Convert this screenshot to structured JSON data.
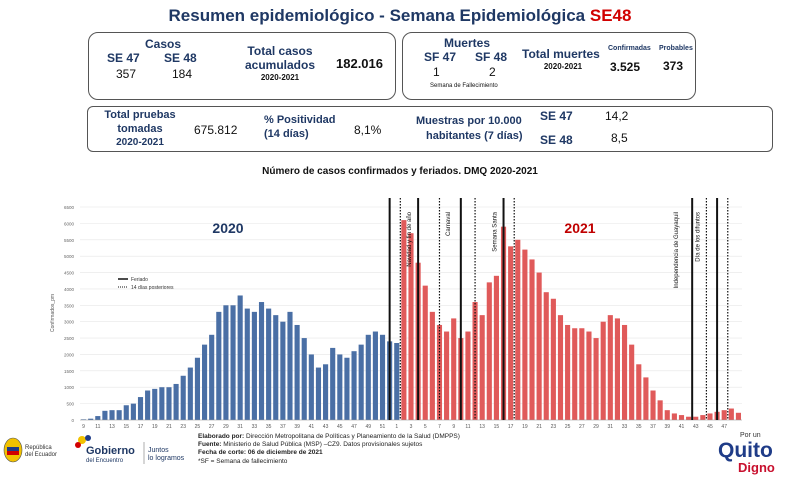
{
  "header": {
    "title_main": "Resumen epidemiológico - Semana Epidemiológica ",
    "title_se": "SE48"
  },
  "casos": {
    "label": "Casos",
    "se47_label": "SE 47",
    "se48_label": "SE 48",
    "se47_value": "357",
    "se48_value": "184",
    "total_label_1": "Total casos",
    "total_label_2": "acumulados",
    "total_period": "2020-2021",
    "total_value": "182.016"
  },
  "muertes": {
    "label": "Muertes",
    "sf47_label": "SF 47",
    "sf48_label": "SF 48",
    "sf47_value": "1",
    "sf48_value": "2",
    "note": "Semana de Fallecimiento",
    "total_label": "Total muertes",
    "total_period": "2020-2021",
    "confirmadas_label": "Confirmadas",
    "confirmadas_value": "3.525",
    "probables_label": "Probables",
    "probables_value": "373"
  },
  "pruebas": {
    "label_1": "Total pruebas",
    "label_2": "tomadas",
    "period": "2020-2021",
    "value": "675.812",
    "positividad_label_1": "% Positividad",
    "positividad_label_2": "(14 días)",
    "positividad_value": "8,1%",
    "muestras_label_1": "Muestras por 10.000",
    "muestras_label_2": "habitantes (7 días)",
    "se47_label": "SE 47",
    "se47_value": "14,2",
    "se48_label": "SE 48",
    "se48_value": "8,5"
  },
  "chart_data": {
    "type": "bar",
    "title": "Número de casos confirmados y feriados. DMQ 2020-2021",
    "ylabel": "Confirmados_pm",
    "ylim": [
      0,
      6500
    ],
    "yticks": [
      0,
      500,
      1000,
      1500,
      2000,
      2500,
      3000,
      3500,
      4000,
      4500,
      5000,
      5500,
      6000,
      6500
    ],
    "year_2020_label": "2020",
    "year_2021_label": "2021",
    "legend": {
      "feriado": "Feriado",
      "posteriores": "14 días posteriores"
    },
    "colors": {
      "2020": "#4a6fa5",
      "2021": "#e05a5a"
    },
    "series": [
      {
        "name": "2020",
        "x": [
          9,
          10,
          11,
          12,
          13,
          14,
          15,
          16,
          17,
          18,
          19,
          20,
          21,
          22,
          23,
          24,
          25,
          26,
          27,
          28,
          29,
          30,
          31,
          32,
          33,
          34,
          35,
          36,
          37,
          38,
          39,
          40,
          41,
          42,
          43,
          44,
          45,
          46,
          47,
          48,
          49,
          50,
          51,
          52,
          53
        ],
        "values": [
          20,
          40,
          120,
          280,
          300,
          300,
          450,
          500,
          700,
          900,
          950,
          1000,
          1000,
          1100,
          1350,
          1600,
          1900,
          2300,
          2600,
          3300,
          3500,
          3500,
          3800,
          3400,
          3300,
          3600,
          3400,
          3200,
          3000,
          3300,
          2900,
          2500,
          2000,
          1600,
          1700,
          2200,
          2000,
          1900,
          2100,
          2300,
          2600,
          2700,
          2600,
          2400,
          2350
        ]
      },
      {
        "name": "2021",
        "x": [
          1,
          2,
          3,
          4,
          5,
          6,
          7,
          8,
          9,
          10,
          11,
          12,
          13,
          14,
          15,
          16,
          17,
          18,
          19,
          20,
          21,
          22,
          23,
          24,
          25,
          26,
          27,
          28,
          29,
          30,
          31,
          32,
          33,
          34,
          35,
          36,
          37,
          38,
          39,
          40,
          41,
          42,
          43,
          44,
          45,
          46,
          47,
          48
        ],
        "values": [
          6100,
          5700,
          4800,
          4100,
          3300,
          2900,
          2700,
          3100,
          2500,
          2700,
          3600,
          3200,
          4200,
          4400,
          5900,
          5300,
          5500,
          5200,
          4900,
          4500,
          3900,
          3700,
          3200,
          2900,
          2800,
          2800,
          2700,
          2500,
          3000,
          3200,
          3100,
          2900,
          2300,
          1700,
          1300,
          900,
          600,
          300,
          200,
          150,
          100,
          100,
          150,
          200,
          250,
          300,
          350,
          220
        ]
      }
    ],
    "xtick_labels": [
      "9",
      "11",
      "13",
      "15",
      "17",
      "19",
      "21",
      "23",
      "25",
      "27",
      "29",
      "31",
      "33",
      "35",
      "37",
      "39",
      "41",
      "43",
      "45",
      "47",
      "49",
      "51",
      "1",
      "3",
      "5",
      "7",
      "9",
      "11",
      "13",
      "15",
      "17",
      "19",
      "21",
      "23",
      "25",
      "27",
      "29",
      "31",
      "33",
      "35",
      "37",
      "39",
      "41",
      "43",
      "45",
      "47"
    ],
    "annotations": [
      {
        "label": "Navidad y fin de año",
        "x_index": 46.5
      },
      {
        "label": "Carnaval",
        "x_index": 52
      },
      {
        "label": "Semana Santa",
        "x_index": 58.5
      },
      {
        "label": "Independencia de Guayaquil",
        "x_index": 84
      },
      {
        "label": "Día de los difuntos",
        "x_index": 87
      }
    ],
    "solid_lines_index": [
      43.5,
      47.5,
      53.5,
      59.5,
      86,
      89.5
    ],
    "dotted_lines_index": [
      45,
      50.5,
      55.5,
      61,
      88,
      91
    ]
  },
  "footer": {
    "line1_bold": "Elaborado por:",
    "line1": " Dirección Metropolitana de Políticas y Planeamiento de la Salud (DMPPS)",
    "line2_bold": "Fuente:",
    "line2": " Ministerio de Salud Pública (MSP) –CZ9. Datos provisionales sujetos",
    "line3_bold": "Fecha de corte: 06 de diciembre de 2021",
    "line4": "*SF = Semana de fallecimiento"
  },
  "logos": {
    "ecuador_1": "República",
    "ecuador_2": "del Ecuador",
    "gobierno_1": "Gobierno",
    "gobierno_2": "del Encuentro",
    "gobierno_3": "Juntos",
    "gobierno_4": "lo logramos",
    "quito_1": "Por un",
    "quito_2": "Quito",
    "quito_3": "Digno"
  }
}
